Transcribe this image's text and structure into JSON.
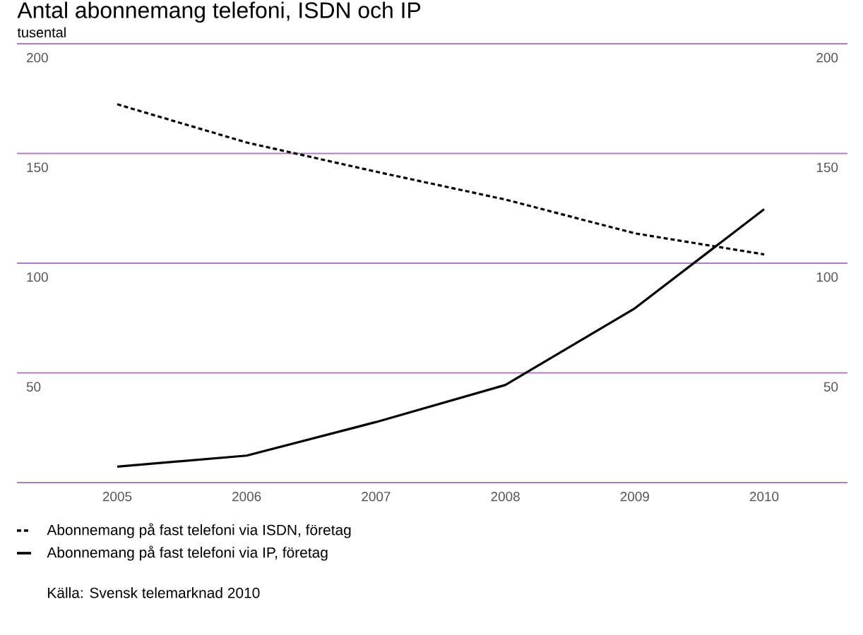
{
  "chart_data": {
    "type": "line",
    "title": "Antal abonnemang telefoni, ISDN och IP",
    "ylabel": "tusental",
    "categories": [
      "2005",
      "2006",
      "2007",
      "2008",
      "2009",
      "2010"
    ],
    "series": [
      {
        "name": "Abonnemang på fast telefoni via ISDN, företag",
        "color": "#000000",
        "line_style": "dashed",
        "values": [
          172.4,
          155,
          141.7,
          129,
          113.6,
          104
        ]
      },
      {
        "name": "Abonnemang på fast telefoni via IP, företag",
        "color": "#000000",
        "line_style": "solid",
        "values": [
          7.3,
          12.3,
          27.6,
          44.5,
          79.4,
          124.6
        ]
      }
    ],
    "ylim": [
      0,
      200
    ],
    "yticks": [
      {
        "value": 0,
        "label": null
      },
      50,
      100,
      150,
      200
    ],
    "y2lim": [
      0,
      200
    ],
    "y2ticks": [
      50,
      100,
      150,
      200
    ],
    "grid": "y",
    "legend": "bottom",
    "marker": "none",
    "annotations": [
      "Källa: Svensk telemarknad 2010"
    ]
  }
}
